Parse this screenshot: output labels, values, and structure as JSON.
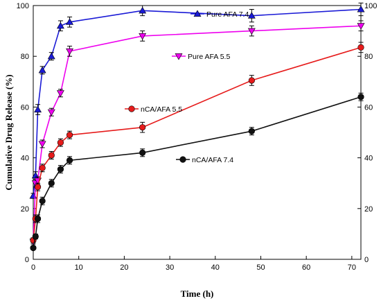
{
  "chart_data": {
    "type": "line",
    "title": "",
    "xlabel": "Time (h)",
    "ylabel": "Cumulative Drug Release (%)",
    "xlim": [
      0,
      72
    ],
    "ylim": [
      0,
      100
    ],
    "xticks": [
      0,
      10,
      20,
      30,
      40,
      50,
      60,
      70
    ],
    "yticks": [
      0,
      20,
      40,
      60,
      80,
      100
    ],
    "grid": false,
    "secondary_y_axis": true,
    "x": [
      0,
      0.5,
      1,
      2,
      4,
      6,
      8,
      24,
      48,
      72
    ],
    "series": [
      {
        "name": "Pure AFA 7.4",
        "color": "#1a1ad6",
        "marker": "triangle-up",
        "values": [
          25,
          33,
          59,
          74.5,
          80,
          92,
          93.5,
          98,
          96,
          98.5
        ],
        "errors": [
          1,
          1.5,
          2,
          1.5,
          1.5,
          2,
          2,
          2,
          2.5,
          2.5
        ]
      },
      {
        "name": "Pure AFA 5.5",
        "color": "#ee00ee",
        "marker": "triangle-down",
        "values": [
          7,
          30,
          31,
          45.5,
          58,
          65.5,
          82,
          88,
          90,
          92
        ],
        "errors": [
          1,
          1.5,
          1.5,
          1.5,
          1.5,
          1.5,
          2,
          2,
          2,
          2
        ]
      },
      {
        "name": "nCA/AFA 5.5",
        "color": "#e61b1b",
        "marker": "circle",
        "values": [
          7.5,
          16,
          28.5,
          36,
          41,
          46,
          49,
          52,
          70.5,
          83.5
        ],
        "errors": [
          1,
          1.5,
          1.5,
          1.5,
          1.5,
          1.5,
          1.5,
          2,
          2,
          2
        ]
      },
      {
        "name": "nCA/AFA 7.4",
        "color": "#111111",
        "marker": "circle",
        "values": [
          4.5,
          9,
          16,
          23,
          30,
          35.5,
          39,
          42,
          50.5,
          64
        ],
        "errors": [
          0.5,
          1,
          1.5,
          1.5,
          1.5,
          1.5,
          1.5,
          1.5,
          1.5,
          1.5
        ]
      }
    ]
  }
}
